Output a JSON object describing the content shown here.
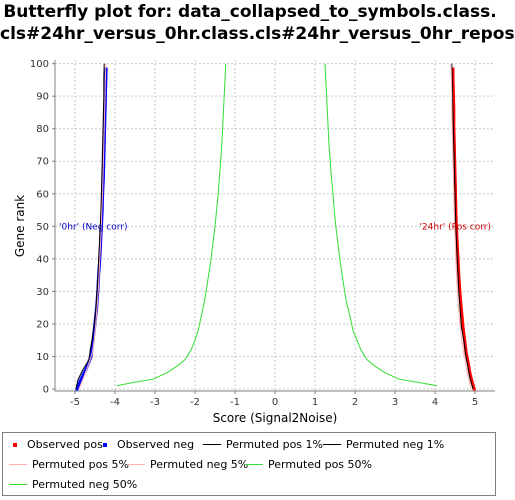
{
  "chart_data": {
    "type": "line",
    "title": "Butterfly plot for: data_collapsed_to_symbols.class.cls#24hr_versus_0hr.class.cls#24hr_versus_0hr_repos",
    "title_line1": "Butterfly plot for: data_collapsed_to_symbols.class.",
    "title_line2": "cls#24hr_versus_0hr.class.cls#24hr_versus_0hr_repos",
    "xlabel": "Score (Signal2Noise)",
    "ylabel": "Gene rank",
    "xlim": [
      -5.5,
      5.5
    ],
    "ylim": [
      0,
      100
    ],
    "x_ticks": [
      -5,
      -4,
      -3,
      -2,
      -1,
      0,
      1,
      2,
      3,
      4,
      5
    ],
    "y_ticks": [
      0,
      10,
      20,
      30,
      40,
      50,
      60,
      70,
      80,
      90,
      100
    ],
    "grid": true,
    "legend_position": "bottom",
    "annotations": [
      {
        "text": "'0hr' (Neg corr)",
        "x": -5.4,
        "y": 50,
        "color": "#0000cc"
      },
      {
        "text": "'24hr' (Pos corr)",
        "x": 5.4,
        "y": 50,
        "color": "#cc0000"
      }
    ],
    "series": [
      {
        "name": "Observed pos",
        "color": "#ff0000",
        "style": "markers",
        "points": [
          [
            4.98,
            0
          ],
          [
            4.93,
            2
          ],
          [
            4.87,
            5
          ],
          [
            4.83,
            8
          ],
          [
            4.78,
            11
          ],
          [
            4.74,
            15
          ],
          [
            4.7,
            19
          ],
          [
            4.67,
            23
          ],
          [
            4.64,
            27
          ],
          [
            4.61,
            32
          ],
          [
            4.59,
            36
          ],
          [
            4.57,
            41
          ],
          [
            4.55,
            46
          ],
          [
            4.53,
            51
          ],
          [
            4.52,
            56
          ],
          [
            4.51,
            61
          ],
          [
            4.5,
            66
          ],
          [
            4.49,
            71
          ],
          [
            4.48,
            76
          ],
          [
            4.47,
            81
          ],
          [
            4.47,
            86
          ],
          [
            4.46,
            91
          ],
          [
            4.45,
            95
          ],
          [
            4.45,
            99
          ]
        ]
      },
      {
        "name": "Observed neg",
        "color": "#0000ff",
        "style": "markers",
        "points": [
          [
            -4.95,
            0
          ],
          [
            -4.85,
            3
          ],
          [
            -4.73,
            6
          ],
          [
            -4.6,
            10
          ],
          [
            -4.56,
            14
          ],
          [
            -4.51,
            19
          ],
          [
            -4.46,
            25
          ],
          [
            -4.43,
            30
          ],
          [
            -4.41,
            35
          ],
          [
            -4.38,
            40
          ],
          [
            -4.36,
            45
          ],
          [
            -4.34,
            50
          ],
          [
            -4.32,
            55
          ],
          [
            -4.31,
            60
          ],
          [
            -4.29,
            65
          ],
          [
            -4.28,
            70
          ],
          [
            -4.27,
            75
          ],
          [
            -4.26,
            80
          ],
          [
            -4.25,
            85
          ],
          [
            -4.24,
            90
          ],
          [
            -4.23,
            95
          ],
          [
            -4.22,
            99
          ]
        ]
      },
      {
        "name": "Permuted pos 1%",
        "color": "#000000",
        "style": "line",
        "points": [
          [
            4.95,
            0
          ],
          [
            4.88,
            3
          ],
          [
            4.82,
            7
          ],
          [
            4.76,
            11
          ],
          [
            4.72,
            15
          ],
          [
            4.66,
            19
          ],
          [
            4.63,
            24
          ],
          [
            4.6,
            29
          ],
          [
            4.58,
            34
          ],
          [
            4.56,
            39
          ],
          [
            4.54,
            44
          ],
          [
            4.52,
            50
          ],
          [
            4.51,
            55
          ],
          [
            4.5,
            60
          ],
          [
            4.49,
            65
          ],
          [
            4.48,
            70
          ],
          [
            4.47,
            75
          ],
          [
            4.46,
            80
          ],
          [
            4.45,
            85
          ],
          [
            4.44,
            90
          ],
          [
            4.43,
            95
          ],
          [
            4.42,
            100
          ]
        ]
      },
      {
        "name": "Permuted neg 1%",
        "color": "#000000",
        "style": "line",
        "points": [
          [
            -4.98,
            0
          ],
          [
            -4.92,
            3
          ],
          [
            -4.8,
            6
          ],
          [
            -4.65,
            9
          ],
          [
            -4.62,
            12
          ],
          [
            -4.56,
            16
          ],
          [
            -4.52,
            20
          ],
          [
            -4.48,
            24
          ],
          [
            -4.46,
            28
          ],
          [
            -4.44,
            32
          ],
          [
            -4.42,
            36
          ],
          [
            -4.41,
            40
          ],
          [
            -4.39,
            44
          ],
          [
            -4.38,
            48
          ],
          [
            -4.36,
            52
          ],
          [
            -4.35,
            56
          ],
          [
            -4.34,
            60
          ],
          [
            -4.33,
            65
          ],
          [
            -4.32,
            70
          ],
          [
            -4.31,
            75
          ],
          [
            -4.3,
            80
          ],
          [
            -4.29,
            85
          ],
          [
            -4.28,
            90
          ],
          [
            -4.28,
            95
          ],
          [
            -4.27,
            100
          ]
        ]
      },
      {
        "name": "Permuted pos 5%",
        "color": "#ffb0b0",
        "style": "line",
        "points": [
          [
            4.9,
            0
          ],
          [
            4.84,
            3
          ],
          [
            4.78,
            7
          ],
          [
            4.72,
            11
          ],
          [
            4.67,
            15
          ],
          [
            4.62,
            20
          ],
          [
            4.59,
            25
          ],
          [
            4.56,
            30
          ],
          [
            4.54,
            35
          ],
          [
            4.52,
            40
          ],
          [
            4.51,
            45
          ],
          [
            4.49,
            50
          ],
          [
            4.48,
            55
          ],
          [
            4.47,
            60
          ],
          [
            4.46,
            65
          ],
          [
            4.45,
            70
          ],
          [
            4.44,
            75
          ],
          [
            4.43,
            80
          ],
          [
            4.42,
            85
          ],
          [
            4.42,
            90
          ],
          [
            4.41,
            95
          ],
          [
            4.4,
            100
          ]
        ]
      },
      {
        "name": "Permuted neg 5%",
        "color": "#ffb0b0",
        "style": "line",
        "points": [
          [
            -4.9,
            0
          ],
          [
            -4.8,
            3
          ],
          [
            -4.68,
            7
          ],
          [
            -4.57,
            11
          ],
          [
            -4.52,
            15
          ],
          [
            -4.48,
            20
          ],
          [
            -4.45,
            25
          ],
          [
            -4.42,
            30
          ],
          [
            -4.4,
            35
          ],
          [
            -4.38,
            40
          ],
          [
            -4.36,
            45
          ],
          [
            -4.34,
            50
          ],
          [
            -4.33,
            55
          ],
          [
            -4.31,
            60
          ],
          [
            -4.3,
            65
          ],
          [
            -4.29,
            70
          ],
          [
            -4.28,
            75
          ],
          [
            -4.27,
            80
          ],
          [
            -4.26,
            85
          ],
          [
            -4.25,
            90
          ],
          [
            -4.24,
            95
          ],
          [
            -4.23,
            100
          ]
        ]
      },
      {
        "name": "Permuted pos 50%",
        "color": "#33dd33",
        "style": "line",
        "points": [
          [
            4.05,
            1
          ],
          [
            3.6,
            2
          ],
          [
            3.1,
            3
          ],
          [
            2.75,
            5
          ],
          [
            2.5,
            7
          ],
          [
            2.3,
            9
          ],
          [
            2.15,
            12
          ],
          [
            2.05,
            15
          ],
          [
            1.95,
            18
          ],
          [
            1.88,
            22
          ],
          [
            1.8,
            26
          ],
          [
            1.74,
            30
          ],
          [
            1.68,
            35
          ],
          [
            1.62,
            40
          ],
          [
            1.57,
            45
          ],
          [
            1.52,
            50
          ],
          [
            1.48,
            55
          ],
          [
            1.45,
            60
          ],
          [
            1.41,
            65
          ],
          [
            1.38,
            70
          ],
          [
            1.35,
            75
          ],
          [
            1.33,
            80
          ],
          [
            1.31,
            85
          ],
          [
            1.29,
            90
          ],
          [
            1.27,
            95
          ],
          [
            1.25,
            100
          ]
        ]
      },
      {
        "name": "Permuted neg 50%",
        "color": "#33dd33",
        "style": "line",
        "points": [
          [
            -3.95,
            1
          ],
          [
            -3.55,
            2
          ],
          [
            -3.05,
            3
          ],
          [
            -2.7,
            5
          ],
          [
            -2.45,
            7
          ],
          [
            -2.25,
            9
          ],
          [
            -2.1,
            12
          ],
          [
            -2.0,
            15
          ],
          [
            -1.92,
            18
          ],
          [
            -1.85,
            22
          ],
          [
            -1.78,
            26
          ],
          [
            -1.72,
            30
          ],
          [
            -1.66,
            35
          ],
          [
            -1.6,
            40
          ],
          [
            -1.55,
            45
          ],
          [
            -1.5,
            50
          ],
          [
            -1.46,
            55
          ],
          [
            -1.42,
            60
          ],
          [
            -1.39,
            65
          ],
          [
            -1.36,
            70
          ],
          [
            -1.33,
            75
          ],
          [
            -1.31,
            80
          ],
          [
            -1.29,
            85
          ],
          [
            -1.27,
            90
          ],
          [
            -1.25,
            95
          ],
          [
            -1.23,
            100
          ]
        ]
      }
    ]
  },
  "legend": {
    "items": [
      {
        "label": "Observed pos",
        "swatch": "marker",
        "color": "#ff0000"
      },
      {
        "label": "Observed neg",
        "swatch": "marker",
        "color": "#0000ff"
      },
      {
        "label": "Permuted pos 1%",
        "swatch": "line",
        "color": "#000000"
      },
      {
        "label": "Permuted neg 1%",
        "swatch": "line",
        "color": "#000000"
      },
      {
        "label": "Permuted pos 5%",
        "swatch": "line",
        "color": "#ffb0b0"
      },
      {
        "label": "Permuted neg 5%",
        "swatch": "line",
        "color": "#ffb0b0"
      },
      {
        "label": "Permuted pos 50%",
        "swatch": "line",
        "color": "#33dd33"
      },
      {
        "label": "Permuted neg 50%",
        "swatch": "line",
        "color": "#33dd33"
      }
    ]
  }
}
